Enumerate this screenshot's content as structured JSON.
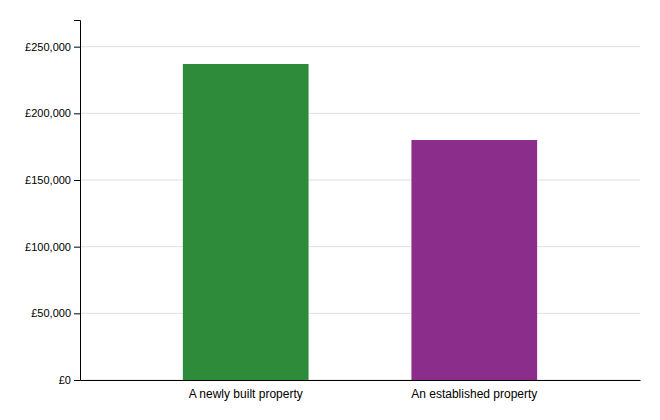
{
  "chart_data": {
    "type": "bar",
    "categories": [
      "A newly built property",
      "An established property"
    ],
    "values": [
      237000,
      180000
    ],
    "colors": [
      "#2e8b3a",
      "#8b2d8b"
    ],
    "ylim": [
      0,
      270000
    ],
    "yticks": [
      {
        "value": 0,
        "label": "£0"
      },
      {
        "value": 50000,
        "label": "£50,000"
      },
      {
        "value": 100000,
        "label": "£100,000"
      },
      {
        "value": 150000,
        "label": "£150,000"
      },
      {
        "value": 200000,
        "label": "£200,000"
      },
      {
        "value": 250000,
        "label": "£250,000"
      }
    ],
    "grid": true
  }
}
